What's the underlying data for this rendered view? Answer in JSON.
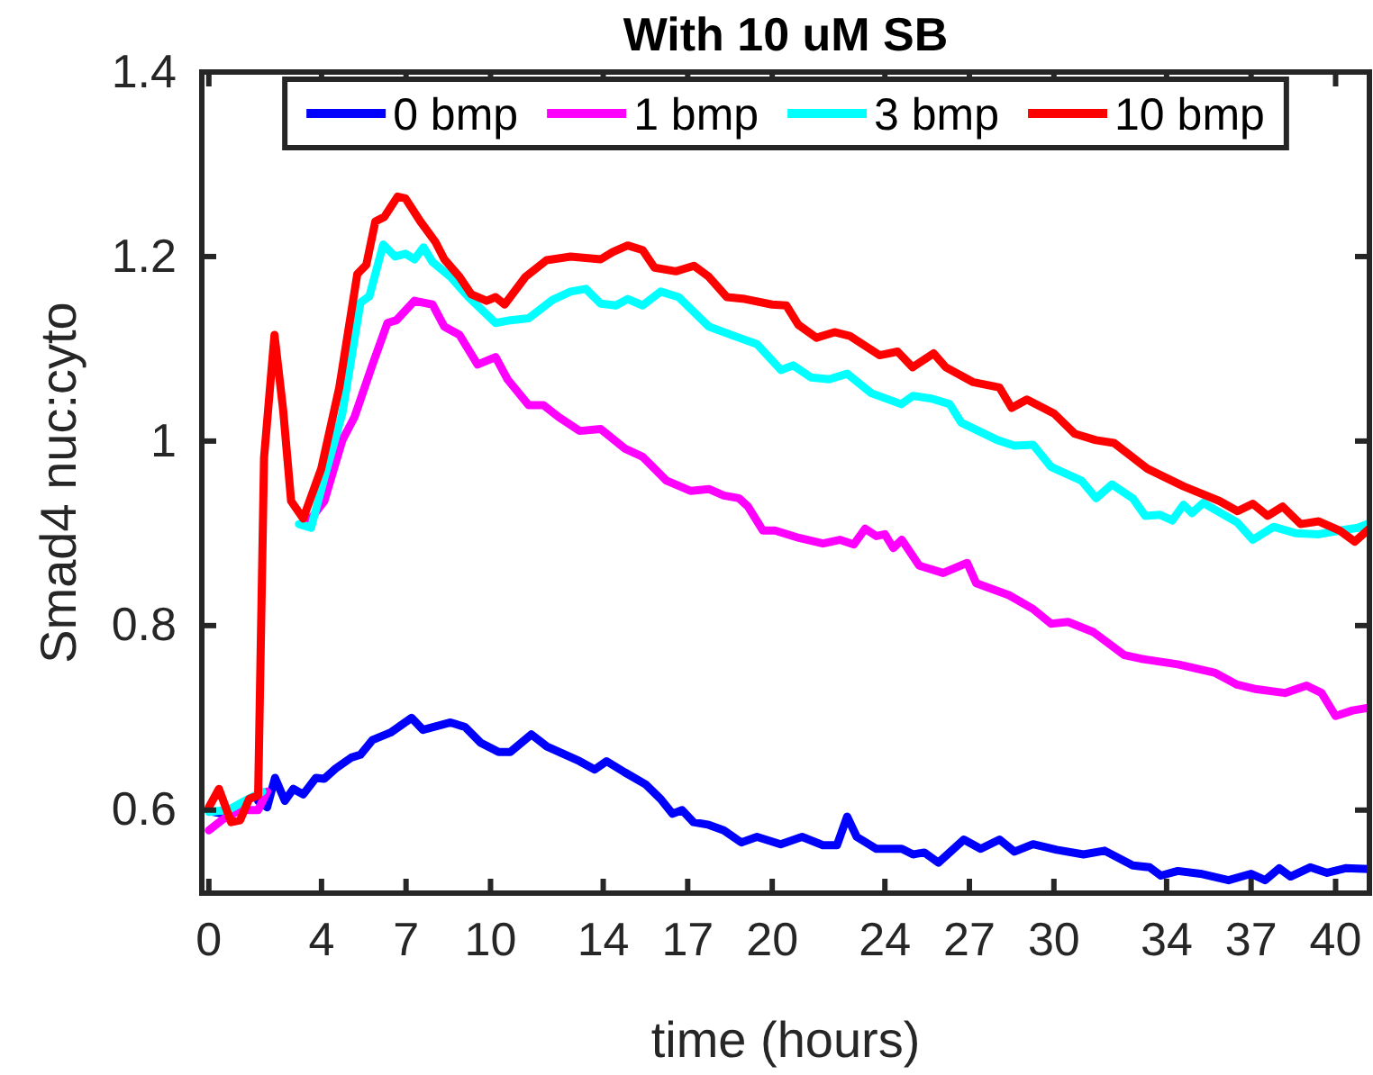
{
  "chart_data": {
    "type": "line",
    "title": "With 10 uM SB",
    "xlabel": "time (hours)",
    "ylabel": "Smad4 nuc:cyto",
    "xlim": [
      -0.25,
      41.2
    ],
    "ylim": [
      0.51,
      1.4
    ],
    "xticks": [
      0,
      4,
      7,
      10,
      14,
      17,
      20,
      24,
      27,
      30,
      34,
      37,
      40
    ],
    "yticks": [
      0.6,
      0.8,
      1,
      1.2,
      1.4
    ],
    "grid": false,
    "legend": "top",
    "line_style": "solid",
    "marker": "none",
    "series": [
      {
        "name": "0 bmp",
        "color": "#0000ff",
        "x": [
          0,
          0.5,
          1.1,
          1.75,
          2.07,
          2.35,
          2.7,
          3.0,
          3.35,
          3.8,
          4.1,
          4.5,
          5.06,
          5.38,
          5.81,
          6.45,
          7.2,
          7.6,
          8.58,
          9.1,
          9.65,
          10.29,
          10.7,
          11.45,
          12.0,
          13.16,
          13.7,
          14.12,
          14.76,
          15.5,
          16.04,
          16.46,
          16.8,
          17.2,
          17.75,
          18.28,
          18.9,
          19.46,
          20.3,
          21.06,
          21.8,
          22.3,
          22.66,
          23.0,
          23.7,
          24.6,
          25.0,
          25.4,
          25.9,
          26.8,
          27.4,
          28.07,
          28.6,
          29.26,
          30.1,
          31.05,
          31.8,
          32.8,
          33.4,
          33.8,
          34.4,
          35.2,
          36.2,
          37.0,
          37.5,
          38.0,
          38.4,
          39.1,
          39.7,
          40.35,
          41.2
        ],
        "values": [
          0.599,
          0.596,
          null,
          0.61,
          0.603,
          0.635,
          0.61,
          0.623,
          0.617,
          0.635,
          0.634,
          0.645,
          0.657,
          0.66,
          0.676,
          0.684,
          0.7,
          0.687,
          0.695,
          0.69,
          0.673,
          0.663,
          0.663,
          0.682,
          0.669,
          0.653,
          0.644,
          0.653,
          0.641,
          0.628,
          0.612,
          0.596,
          0.6,
          0.587,
          0.584,
          0.578,
          0.565,
          0.571,
          0.563,
          0.571,
          0.562,
          0.562,
          0.593,
          0.571,
          0.558,
          0.558,
          0.552,
          0.554,
          0.543,
          0.568,
          0.558,
          0.568,
          0.555,
          0.563,
          0.557,
          0.552,
          0.556,
          0.54,
          0.538,
          0.529,
          0.534,
          0.531,
          0.524,
          0.531,
          0.524,
          0.537,
          0.528,
          0.538,
          0.532,
          0.537,
          0.536
        ]
      },
      {
        "name": "1 bmp",
        "color": "#ff00ff",
        "x": [
          0,
          0.5,
          1.11,
          1.75,
          2.07,
          2.18,
          2.4,
          3.3,
          3.6,
          4.1,
          4.74,
          5.17,
          5.81,
          6.34,
          6.66,
          7.3,
          7.94,
          8.36,
          8.9,
          9.54,
          10.18,
          10.6,
          11.35,
          11.88,
          12.42,
          13.16,
          13.91,
          14.76,
          15.4,
          16.25,
          17.1,
          17.75,
          18.28,
          18.82,
          19.14,
          19.67,
          20.1,
          20.95,
          21.8,
          22.4,
          22.9,
          23.3,
          23.7,
          24.0,
          24.3,
          24.6,
          25.22,
          26.07,
          26.92,
          27.24,
          28.4,
          29.26,
          29.9,
          30.5,
          31.4,
          32.5,
          33.1,
          34.4,
          35.7,
          36.5,
          37.2,
          38.2,
          38.97,
          39.5,
          40.0,
          40.6,
          41.2
        ],
        "values": [
          0.578,
          0.59,
          0.6,
          0.6,
          0.62,
          null,
          null,
          0.92,
          0.915,
          0.935,
          1.001,
          1.026,
          1.083,
          1.128,
          1.131,
          1.152,
          1.148,
          1.124,
          1.115,
          1.083,
          1.091,
          1.067,
          1.039,
          1.039,
          1.026,
          1.011,
          1.013,
          0.992,
          0.983,
          0.957,
          0.946,
          0.948,
          0.941,
          0.938,
          0.929,
          0.903,
          0.903,
          0.895,
          0.889,
          0.893,
          0.888,
          0.905,
          0.897,
          0.899,
          0.884,
          0.893,
          0.865,
          0.857,
          0.868,
          0.846,
          0.833,
          0.818,
          0.802,
          0.804,
          0.793,
          0.768,
          0.764,
          0.758,
          0.749,
          0.736,
          0.731,
          0.727,
          0.735,
          0.727,
          0.702,
          0.708,
          0.711
        ]
      },
      {
        "name": "3 bmp",
        "color": "#00ffff",
        "x": [
          0,
          0.68,
          1.28,
          1.9,
          2.33,
          3.2,
          3.63,
          4.1,
          4.74,
          5.38,
          5.7,
          6.19,
          6.61,
          6.98,
          7.3,
          7.62,
          7.94,
          8.58,
          9.22,
          10.18,
          10.71,
          11.35,
          12.2,
          12.84,
          13.38,
          13.91,
          14.45,
          14.87,
          15.4,
          16.04,
          16.68,
          17.75,
          18.82,
          19.46,
          20.31,
          20.74,
          21.38,
          22.02,
          22.66,
          23.51,
          24.58,
          25.0,
          25.66,
          26.3,
          26.71,
          28.0,
          28.6,
          29.26,
          29.9,
          30.98,
          31.5,
          32.06,
          32.8,
          33.24,
          33.77,
          34.2,
          34.6,
          34.9,
          35.3,
          36.5,
          37.06,
          37.8,
          38.6,
          39.4,
          40.15,
          40.79,
          41.2
        ],
        "values": [
          0.598,
          0.6,
          0.61,
          0.62,
          null,
          0.91,
          0.906,
          0.96,
          1.03,
          1.15,
          1.157,
          1.213,
          1.2,
          1.203,
          1.197,
          1.21,
          1.194,
          1.178,
          1.156,
          1.128,
          1.131,
          1.133,
          1.153,
          1.162,
          1.165,
          1.149,
          1.147,
          1.154,
          1.147,
          1.162,
          1.156,
          1.124,
          1.112,
          1.105,
          1.077,
          1.082,
          1.069,
          1.067,
          1.073,
          1.052,
          1.04,
          1.049,
          1.046,
          1.04,
          1.02,
          1.001,
          0.995,
          0.996,
          0.972,
          0.957,
          0.938,
          0.953,
          0.938,
          0.919,
          0.92,
          0.914,
          0.931,
          0.922,
          0.933,
          0.912,
          0.893,
          0.907,
          0.9,
          0.899,
          0.903,
          0.906,
          0.911
        ]
      },
      {
        "name": "10 bmp",
        "color": "#ff0000",
        "x": [
          0,
          0.36,
          0.79,
          1.11,
          1.43,
          1.75,
          1.96,
          2.33,
          2.64,
          2.92,
          3.35,
          3.99,
          4.63,
          5.27,
          5.59,
          5.91,
          6.23,
          6.7,
          6.98,
          7.51,
          8.04,
          8.36,
          8.9,
          9.32,
          9.86,
          10.18,
          10.5,
          11.24,
          11.99,
          12.84,
          13.91,
          14.34,
          14.87,
          15.4,
          15.82,
          16.58,
          17.22,
          17.75,
          18.39,
          19.03,
          19.99,
          20.5,
          20.93,
          21.57,
          22.21,
          22.75,
          23.81,
          24.45,
          24.98,
          25.73,
          26.16,
          27.12,
          28.07,
          28.5,
          29.04,
          30.0,
          30.74,
          31.49,
          32.13,
          33.32,
          34.6,
          35.88,
          36.52,
          37.06,
          37.59,
          38.12,
          38.76,
          39.4,
          40.15,
          40.68,
          41.2
        ],
        "values": [
          0.603,
          0.623,
          0.587,
          0.589,
          0.612,
          0.616,
          0.982,
          1.115,
          1.033,
          0.935,
          0.916,
          0.97,
          1.058,
          1.181,
          1.191,
          1.238,
          1.243,
          1.265,
          1.263,
          1.238,
          1.216,
          1.197,
          1.178,
          1.159,
          1.152,
          1.156,
          1.148,
          1.178,
          1.196,
          1.2,
          1.197,
          1.205,
          1.212,
          1.207,
          1.188,
          1.184,
          1.19,
          1.178,
          1.156,
          1.154,
          1.148,
          1.147,
          1.126,
          1.112,
          1.118,
          1.114,
          1.093,
          1.097,
          1.08,
          1.095,
          1.08,
          1.064,
          1.058,
          1.036,
          1.045,
          1.03,
          1.008,
          1.001,
          0.998,
          0.97,
          0.951,
          0.935,
          0.924,
          0.932,
          0.919,
          0.929,
          0.91,
          0.913,
          0.903,
          0.891,
          0.905
        ]
      }
    ]
  }
}
